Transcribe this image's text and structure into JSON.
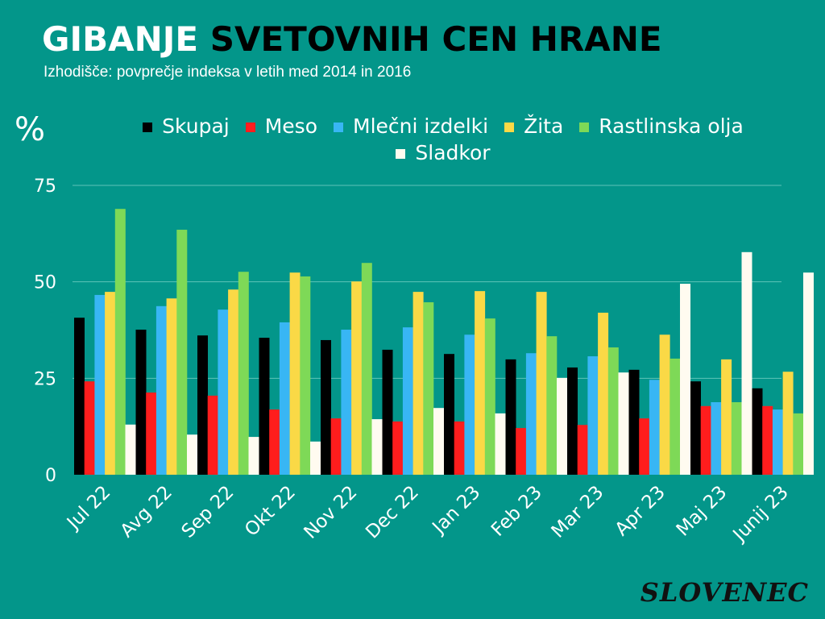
{
  "title_part1": "GIBANJE",
  "title_part2": "SVETOVNIH CEN HRANE",
  "subtitle": "Izhodišče: povprečje indeksa v letih med 2014 in 2016",
  "logo": "SLOVENEC",
  "chart_data": {
    "type": "bar",
    "ylabel": "%",
    "ylim": [
      0,
      75
    ],
    "yticks": [
      0,
      25,
      50,
      75
    ],
    "grid": true,
    "legend_position": "top",
    "categories": [
      "Jul 22",
      "Avg 22",
      "Sep 22",
      "Okt 22",
      "Nov 22",
      "Dec 22",
      "Jan 23",
      "Feb 23",
      "Mar 23",
      "Apr 23",
      "Maj 23",
      "Junij 23"
    ],
    "series": [
      {
        "name": "Skupaj",
        "color": "#000000",
        "values": [
          40.7,
          37.6,
          36.1,
          35.5,
          34.9,
          32.4,
          31.3,
          29.9,
          27.8,
          27.2,
          24.2,
          22.4
        ]
      },
      {
        "name": "Meso",
        "color": "#ff1d1d",
        "values": [
          24.2,
          21.3,
          20.5,
          16.9,
          14.6,
          13.8,
          13.8,
          12.1,
          12.9,
          14.6,
          17.8,
          17.8
        ]
      },
      {
        "name": "Mlečni izdelki",
        "color": "#38b6f4",
        "values": [
          46.6,
          43.7,
          42.8,
          39.5,
          37.6,
          38.2,
          36.3,
          31.5,
          30.7,
          24.6,
          18.8,
          16.9
        ]
      },
      {
        "name": "Žita",
        "color": "#fad946",
        "values": [
          47.4,
          45.7,
          48.0,
          52.4,
          50.1,
          47.4,
          47.6,
          47.4,
          42.0,
          36.3,
          29.9,
          26.7
        ]
      },
      {
        "name": "Rastlinska olja",
        "color": "#7ed957",
        "values": [
          68.9,
          63.5,
          52.6,
          51.4,
          54.9,
          44.7,
          40.5,
          35.9,
          33.0,
          30.1,
          18.8,
          15.9
        ]
      },
      {
        "name": "Sladkor",
        "color": "#fffbf0",
        "values": [
          13.0,
          10.4,
          9.8,
          8.6,
          14.4,
          17.3,
          15.9,
          25.1,
          26.5,
          49.5,
          57.7,
          52.4
        ]
      }
    ]
  }
}
